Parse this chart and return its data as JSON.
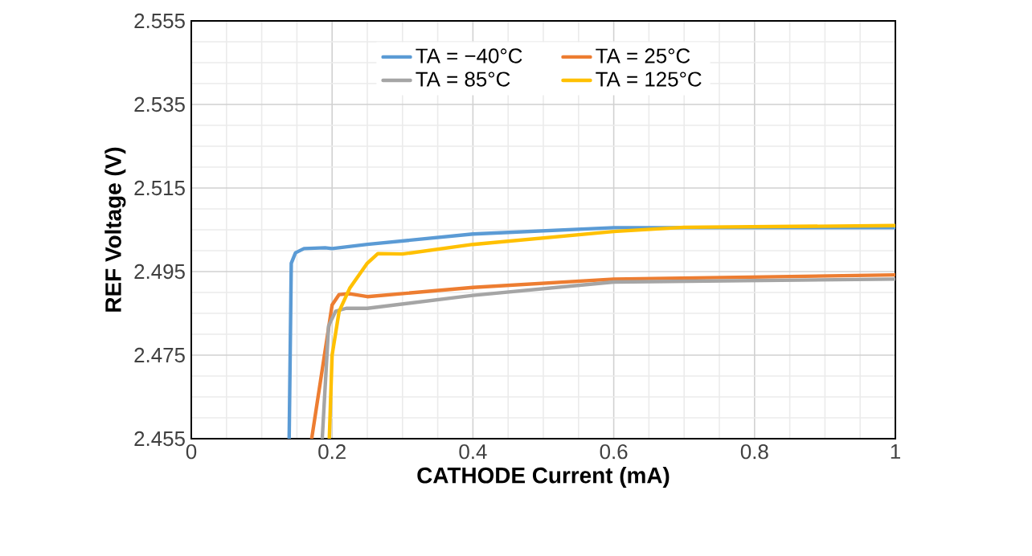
{
  "chart_data": {
    "type": "line",
    "xlabel": "CATHODE Current (mA)",
    "ylabel": "REF Voltage (V)",
    "xlim": [
      0,
      1
    ],
    "ylim": [
      2.455,
      2.555
    ],
    "xticks": [
      0,
      0.2,
      0.4,
      0.6,
      0.8,
      1
    ],
    "yticks": [
      2.455,
      2.475,
      2.495,
      2.515,
      2.535,
      2.555
    ],
    "grid": true,
    "legend": "top",
    "marker": "none",
    "line_style": "solid",
    "series": [
      {
        "name": "TA = −40°C",
        "color": "#5b9bd5",
        "x": [
          0.139,
          0.142,
          0.148,
          0.16,
          0.19,
          0.2,
          0.25,
          0.4,
          0.6,
          1.0
        ],
        "values": [
          2.455,
          2.497,
          2.4995,
          2.5005,
          2.5007,
          2.5005,
          2.5015,
          2.504,
          2.5055,
          2.5055
        ]
      },
      {
        "name": "TA = 25°C",
        "color": "#ed7d31",
        "x": [
          0.171,
          0.2,
          0.21,
          0.225,
          0.25,
          0.4,
          0.6,
          1.0
        ],
        "values": [
          2.455,
          2.487,
          2.4895,
          2.4897,
          2.489,
          2.4912,
          2.4932,
          2.4942
        ]
      },
      {
        "name": "TA = 85°C",
        "color": "#a5a5a5",
        "x": [
          0.186,
          0.195,
          0.205,
          0.22,
          0.25,
          0.4,
          0.6,
          1.0
        ],
        "values": [
          2.455,
          2.482,
          2.4855,
          2.4862,
          2.4862,
          2.4893,
          2.4925,
          2.4932
        ]
      },
      {
        "name": "TA = 125°C",
        "color": "#ffc000",
        "x": [
          0.196,
          0.2,
          0.21,
          0.225,
          0.25,
          0.265,
          0.3,
          0.4,
          0.6,
          0.7,
          1.0
        ],
        "values": [
          2.455,
          2.475,
          2.4855,
          2.491,
          2.497,
          2.4993,
          2.4992,
          2.5015,
          2.5046,
          2.5056,
          2.506
        ]
      }
    ]
  }
}
